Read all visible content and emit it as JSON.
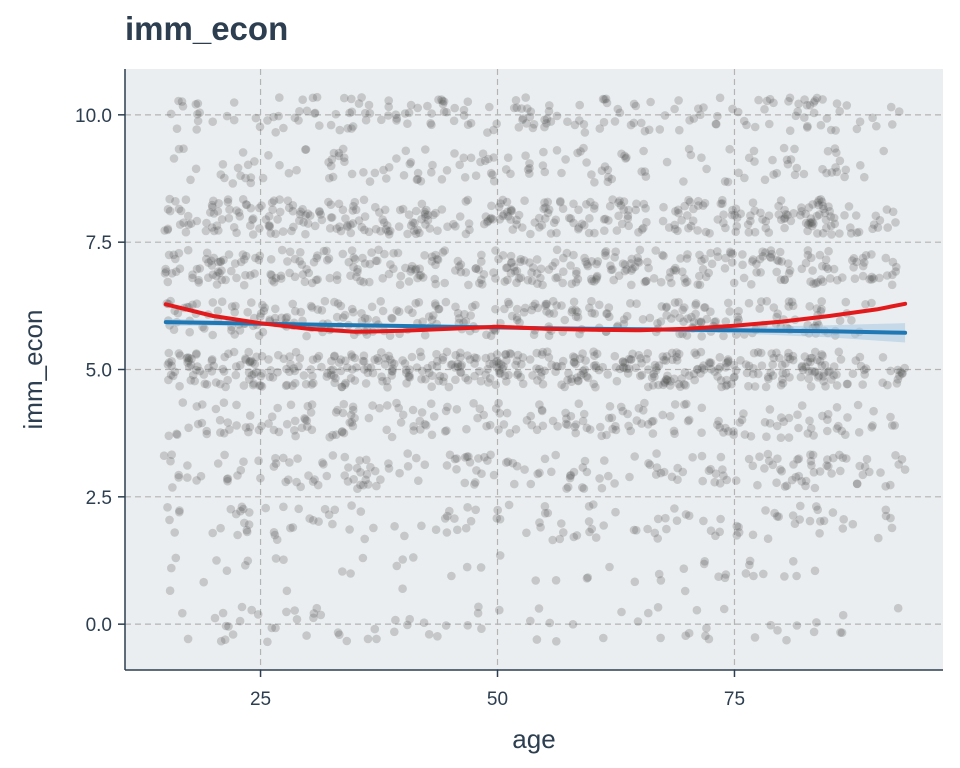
{
  "chart_data": {
    "type": "scatter",
    "title": "imm_econ",
    "xlabel": "age",
    "ylabel": "imm_econ",
    "xlim": [
      10.7,
      97
    ],
    "ylim": [
      -0.9,
      10.9
    ],
    "x_ticks": [
      25,
      50,
      75
    ],
    "x_tick_labels": [
      "25",
      "50",
      "75"
    ],
    "y_ticks": [
      0,
      2.5,
      5,
      7.5,
      10
    ],
    "y_tick_labels": [
      "0.0",
      "2.5",
      "5.0",
      "7.5",
      "10.0"
    ],
    "grid": true,
    "legend": "none",
    "points": {
      "description": "~2500 jittered respondents, age 15-93, imm_econ integer 0-10 with jitter; dense bands at 5, 6, 7, 8",
      "x_range": [
        15,
        93
      ],
      "y_levels": [
        0,
        1,
        2,
        3,
        4,
        5,
        6,
        7,
        8,
        9,
        10
      ],
      "y_level_weights": [
        0.025,
        0.02,
        0.045,
        0.07,
        0.08,
        0.2,
        0.13,
        0.15,
        0.14,
        0.06,
        0.08
      ],
      "jitter": 0.35,
      "count": 2500,
      "color": "#555555",
      "opacity": 0.25
    },
    "series": [
      {
        "method": "linear",
        "color": "#1f77b4",
        "x": [
          15,
          25,
          35,
          45,
          55,
          65,
          75,
          85,
          93
        ],
        "y": [
          5.93,
          5.9,
          5.87,
          5.84,
          5.81,
          5.79,
          5.77,
          5.75,
          5.72
        ],
        "ci_lower": [
          5.86,
          5.86,
          5.84,
          5.81,
          5.78,
          5.75,
          5.71,
          5.63,
          5.53
        ],
        "ci_upper": [
          6.0,
          5.94,
          5.9,
          5.87,
          5.84,
          5.83,
          5.83,
          5.87,
          5.91
        ]
      },
      {
        "method": "loess",
        "color": "#e31a1c",
        "x": [
          15,
          20,
          25,
          30,
          35,
          40,
          45,
          50,
          55,
          60,
          65,
          70,
          75,
          80,
          85,
          90,
          93
        ],
        "y": [
          6.28,
          6.05,
          5.91,
          5.8,
          5.74,
          5.76,
          5.8,
          5.84,
          5.8,
          5.78,
          5.77,
          5.8,
          5.86,
          5.94,
          6.05,
          6.18,
          6.29
        ]
      }
    ]
  }
}
